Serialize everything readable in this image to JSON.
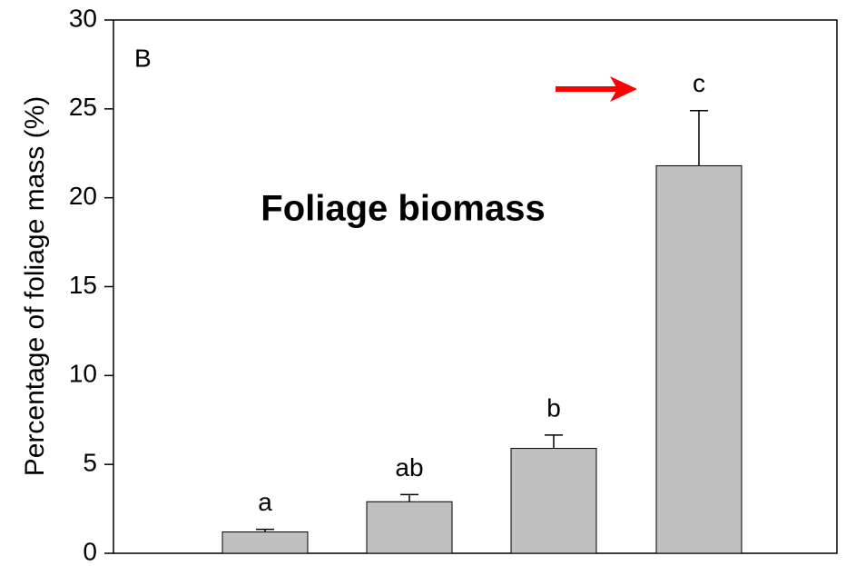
{
  "chart_data": {
    "type": "bar",
    "panel_label": "B",
    "annotation": "Foliage biomass",
    "y_label": "Percentage of foliage mass (%)",
    "categories": [
      null,
      null,
      null,
      null
    ],
    "values": [
      1.2,
      2.9,
      5.9,
      21.8
    ],
    "errors": [
      0.15,
      0.4,
      0.75,
      3.1
    ],
    "significance_letters": [
      "a",
      "ab",
      "b",
      "c"
    ],
    "color": "#c0c0c0",
    "ylim": [
      0,
      30
    ],
    "yticks": [
      0,
      5,
      10,
      15,
      20,
      25,
      30
    ],
    "grid": false
  }
}
